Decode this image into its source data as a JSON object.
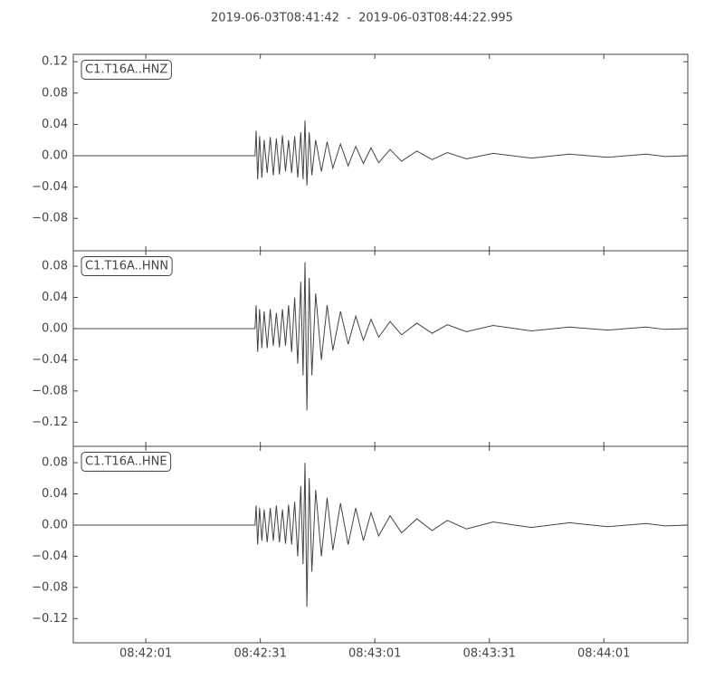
{
  "chart_data": [
    {
      "type": "line",
      "title": "2019-06-03T08:41:42  -  2019-06-03T08:44:22.995",
      "label": "C1.T16A..HNZ",
      "color": "#444444",
      "x": [
        0,
        47.6,
        47.9,
        48.3,
        48.8,
        49.4,
        50,
        50.8,
        51.6,
        52.4,
        53.2,
        54,
        54.8,
        55.6,
        56.4,
        57.2,
        58,
        58.8,
        59.6,
        60.2,
        60.7,
        61.2,
        61.8,
        62.5,
        63.5,
        65,
        66.5,
        68,
        70,
        72,
        74,
        76,
        78,
        80,
        83,
        86,
        90,
        94,
        98,
        103,
        110,
        120,
        130,
        140,
        150,
        155,
        160.9
      ],
      "values": [
        0,
        0,
        0.032,
        -0.03,
        0.025,
        -0.028,
        0.02,
        -0.022,
        0.024,
        -0.025,
        0.022,
        -0.024,
        0.026,
        -0.02,
        0.02,
        -0.022,
        0.025,
        -0.028,
        0.03,
        -0.03,
        0.045,
        -0.038,
        0.03,
        -0.025,
        0.02,
        -0.02,
        0.018,
        -0.016,
        0.015,
        -0.013,
        0.012,
        -0.01,
        0.01,
        -0.009,
        0.008,
        -0.007,
        0.006,
        -0.005,
        0.004,
        -0.004,
        0.003,
        -0.003,
        0.002,
        -0.002,
        0.002,
        -0.001,
        0
      ],
      "ylim": [
        -0.1214,
        0.1295
      ],
      "yticks": [
        0.12,
        0.08,
        0.04,
        {
          "value": 0,
          "label": "0.00"
        },
        {
          "value": -0.04,
          "label": "−0.04"
        },
        {
          "value": -0.08,
          "label": "−0.08"
        }
      ]
    },
    {
      "type": "line",
      "label": "C1.T16A..HNN",
      "color": "#444444",
      "x": [
        0,
        47.6,
        47.9,
        48.3,
        48.8,
        49.4,
        50,
        50.8,
        51.6,
        52.4,
        53.2,
        54,
        54.8,
        55.6,
        56.4,
        57.2,
        58,
        58.8,
        59.6,
        60.2,
        60.7,
        61.2,
        61.8,
        62.5,
        63.5,
        65,
        66.5,
        68,
        70,
        72,
        74,
        76,
        78,
        80,
        83,
        86,
        90,
        94,
        98,
        103,
        110,
        120,
        130,
        140,
        150,
        155,
        160.9
      ],
      "values": [
        0,
        0,
        0.03,
        -0.03,
        0.025,
        -0.025,
        0.022,
        -0.025,
        0.025,
        -0.022,
        0.02,
        -0.024,
        0.025,
        -0.022,
        0.03,
        -0.03,
        0.04,
        -0.045,
        0.06,
        -0.06,
        0.085,
        -0.105,
        0.065,
        -0.06,
        0.045,
        -0.04,
        0.03,
        -0.028,
        0.022,
        -0.02,
        0.016,
        -0.015,
        0.012,
        -0.011,
        0.009,
        -0.008,
        0.007,
        -0.006,
        0.005,
        -0.004,
        0.004,
        -0.003,
        0.002,
        -0.002,
        0.002,
        -0.001,
        0
      ],
      "ylim": [
        -0.151,
        0.0998
      ],
      "yticks": [
        0.08,
        0.04,
        {
          "value": 0,
          "label": "0.00"
        },
        {
          "value": -0.04,
          "label": "−0.04"
        },
        {
          "value": -0.08,
          "label": "−0.08"
        },
        {
          "value": -0.12,
          "label": "−0.12"
        }
      ]
    },
    {
      "type": "line",
      "label": "C1.T16A..HNE",
      "color": "#444444",
      "x": [
        0,
        47.6,
        47.9,
        48.3,
        48.8,
        49.4,
        50,
        50.8,
        51.6,
        52.4,
        53.2,
        54,
        54.8,
        55.6,
        56.4,
        57.2,
        58,
        58.8,
        59.6,
        60.2,
        60.7,
        61.2,
        61.8,
        62.5,
        63.5,
        65,
        66.5,
        68,
        70,
        72,
        74,
        76,
        78,
        80,
        83,
        86,
        90,
        94,
        98,
        103,
        110,
        120,
        130,
        140,
        150,
        155,
        160.9
      ],
      "values": [
        0,
        0,
        0.025,
        -0.025,
        0.022,
        -0.02,
        0.02,
        -0.022,
        0.022,
        -0.02,
        0.025,
        -0.022,
        0.02,
        -0.024,
        0.026,
        -0.025,
        0.03,
        -0.04,
        0.05,
        -0.05,
        0.08,
        -0.105,
        0.06,
        -0.06,
        0.045,
        -0.04,
        0.035,
        -0.032,
        0.028,
        -0.025,
        0.022,
        -0.02,
        0.016,
        -0.014,
        0.012,
        -0.01,
        0.008,
        -0.007,
        0.006,
        -0.005,
        0.004,
        -0.003,
        0.003,
        -0.002,
        0.002,
        -0.001,
        0
      ],
      "ylim": [
        -0.151,
        0.101
      ],
      "yticks": [
        0.08,
        0.04,
        {
          "value": 0,
          "label": "0.00"
        },
        {
          "value": -0.04,
          "label": "−0.04"
        },
        {
          "value": -0.08,
          "label": "−0.08"
        },
        {
          "value": -0.12,
          "label": "−0.12"
        }
      ],
      "xlim": [
        0,
        160.995
      ],
      "xticks": [
        {
          "value": 19,
          "label": "08:42:01"
        },
        {
          "value": 49,
          "label": "08:42:31"
        },
        {
          "value": 79,
          "label": "08:43:01"
        },
        {
          "value": 109,
          "label": "08:43:31"
        },
        {
          "value": 139,
          "label": "08:44:01"
        }
      ]
    }
  ]
}
